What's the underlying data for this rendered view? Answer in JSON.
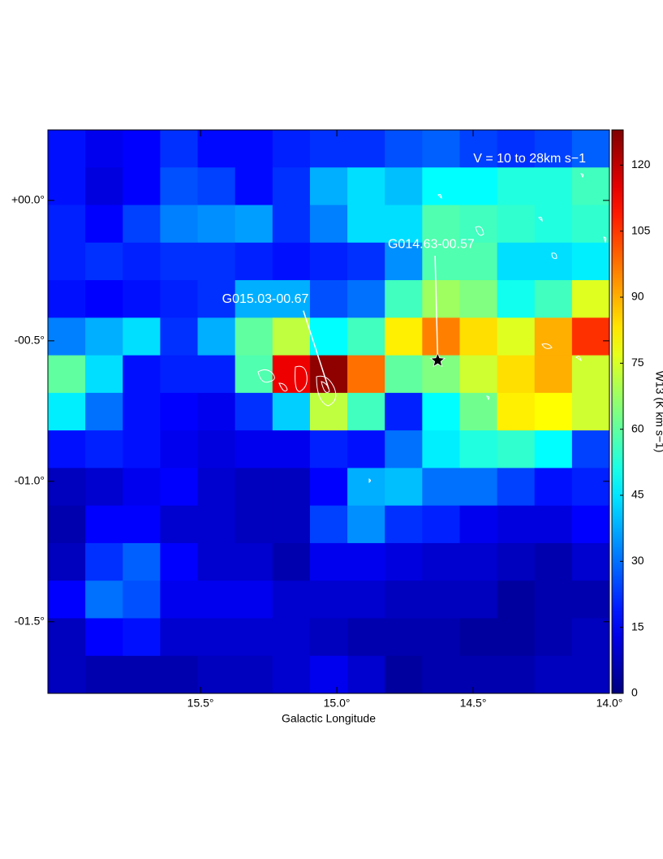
{
  "chart_data": {
    "type": "heatmap",
    "colormap": "jet",
    "xlabel": "Galactic Longitude",
    "xlim": [
      16.06,
      14.0
    ],
    "xticks": [
      {
        "value": 15.5,
        "label": "15.5°"
      },
      {
        "value": 15.0,
        "label": "15.0°"
      },
      {
        "value": 14.5,
        "label": "14.5°"
      },
      {
        "value": 14.0,
        "label": "14.0°"
      }
    ],
    "ylim": [
      -1.755,
      0.251
    ],
    "yticks": [
      {
        "value": 0.0,
        "label": "+00.0°"
      },
      {
        "value": -0.5,
        "label": "-00.5°"
      },
      {
        "value": -1.0,
        "label": "-01.0°"
      },
      {
        "value": -1.5,
        "label": "-01.5°"
      }
    ],
    "values": [
      [
        18,
        14,
        16,
        22,
        17,
        17,
        20,
        22,
        22,
        26,
        28,
        24,
        22,
        24,
        28
      ],
      [
        18,
        12,
        16,
        26,
        24,
        17,
        22,
        38,
        44,
        40,
        48,
        48,
        52,
        52,
        56
      ],
      [
        20,
        16,
        24,
        32,
        34,
        36,
        22,
        32,
        44,
        44,
        58,
        56,
        54,
        52,
        54
      ],
      [
        20,
        22,
        20,
        22,
        22,
        20,
        18,
        20,
        22,
        34,
        58,
        58,
        44,
        44,
        46
      ],
      [
        18,
        16,
        18,
        20,
        22,
        38,
        38,
        26,
        30,
        56,
        68,
        64,
        50,
        56,
        76
      ],
      [
        32,
        38,
        44,
        22,
        38,
        60,
        72,
        48,
        56,
        82,
        96,
        84,
        76,
        90,
        106
      ],
      [
        60,
        44,
        18,
        20,
        20,
        58,
        114,
        126,
        98,
        60,
        64,
        74,
        84,
        90,
        74
      ],
      [
        46,
        30,
        18,
        16,
        14,
        22,
        42,
        72,
        56,
        20,
        48,
        62,
        82,
        80,
        74
      ],
      [
        18,
        20,
        18,
        14,
        12,
        14,
        14,
        20,
        18,
        30,
        46,
        52,
        54,
        48,
        24
      ],
      [
        8,
        10,
        14,
        16,
        10,
        8,
        8,
        16,
        38,
        40,
        30,
        30,
        24,
        18,
        20
      ],
      [
        6,
        16,
        16,
        10,
        10,
        8,
        8,
        24,
        34,
        22,
        20,
        14,
        12,
        12,
        16
      ],
      [
        8,
        22,
        28,
        16,
        10,
        10,
        6,
        14,
        14,
        12,
        10,
        10,
        8,
        6,
        10
      ],
      [
        16,
        30,
        26,
        14,
        14,
        14,
        10,
        10,
        10,
        8,
        8,
        8,
        4,
        6,
        6
      ],
      [
        8,
        16,
        18,
        10,
        10,
        10,
        10,
        8,
        6,
        6,
        6,
        4,
        4,
        6,
        8
      ],
      [
        8,
        6,
        6,
        6,
        8,
        8,
        10,
        14,
        10,
        4,
        6,
        6,
        6,
        8,
        8
      ]
    ],
    "colorbar": {
      "lim": [
        0,
        128
      ],
      "ticks": [
        0,
        15,
        30,
        45,
        60,
        75,
        90,
        105,
        120
      ],
      "label": "W13 (K km s−1)"
    },
    "velocity_label": "V = 10 to 28km s−1",
    "sources": [
      {
        "label": "G015.03-00.67",
        "x": 15.03,
        "y": -0.67,
        "marker": false
      },
      {
        "label": "G014.63-00.57",
        "x": 14.63,
        "y": -0.57,
        "marker": true
      }
    ]
  }
}
